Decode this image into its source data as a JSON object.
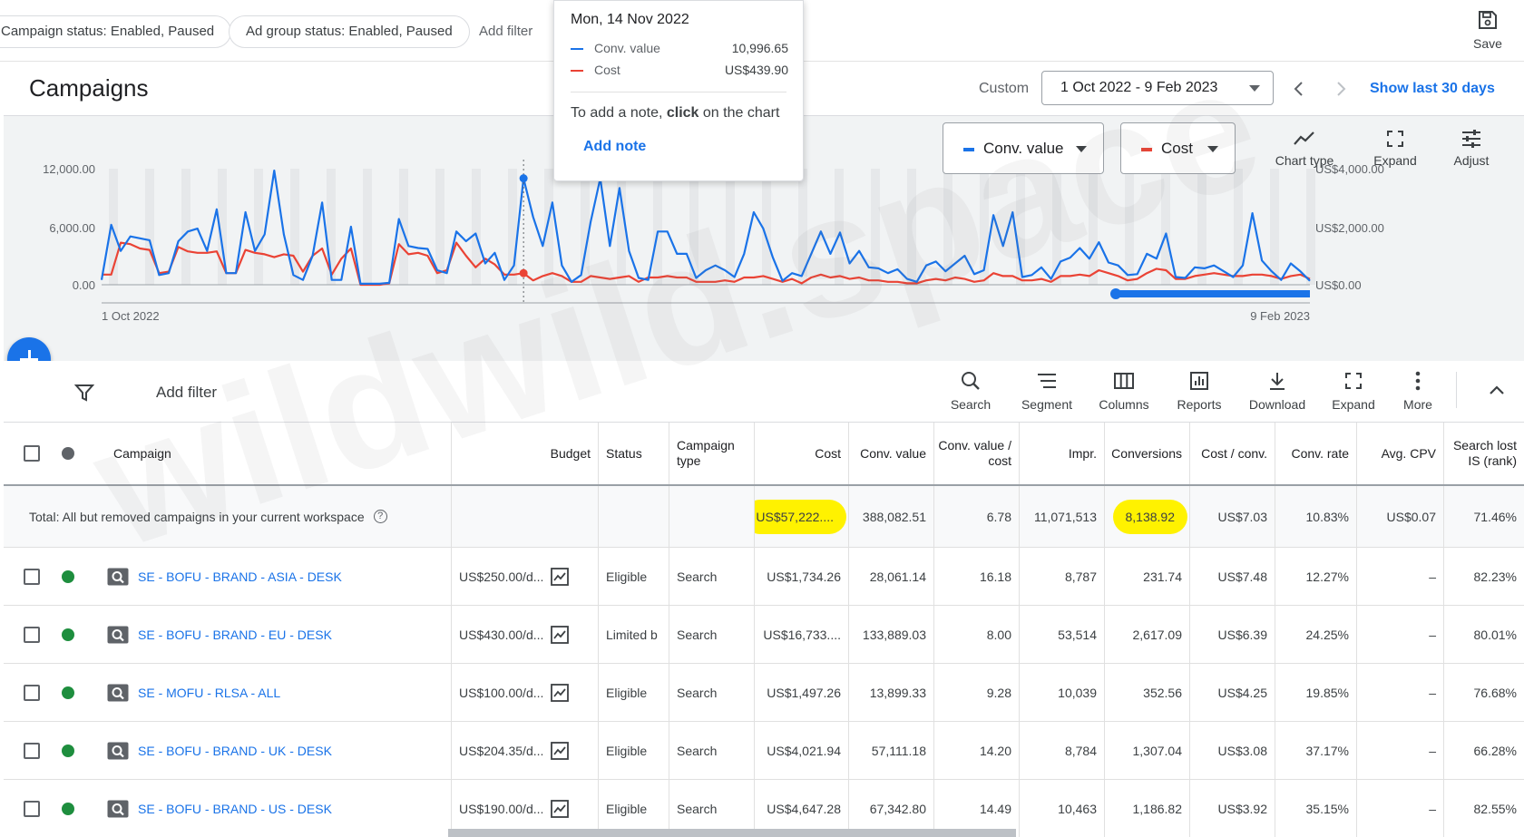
{
  "filter_bar": {
    "chips": [
      "Campaign status: Enabled, Paused",
      "Ad group status: Enabled, Paused"
    ],
    "add_filter": "Add filter",
    "save_label": "Save"
  },
  "header": {
    "title": "Campaigns",
    "custom_label": "Custom",
    "date_range": "1 Oct 2022 - 9 Feb 2023",
    "show_last": "Show last 30 days"
  },
  "tooltip": {
    "date": "Mon, 14 Nov 2022",
    "rows": [
      {
        "label": "Conv. value",
        "value": "10,996.65",
        "color": "#1a73e8"
      },
      {
        "label": "Cost",
        "value": "US$439.90",
        "color": "#ea4335"
      }
    ],
    "note_prefix": "To add a note, ",
    "note_bold": "click",
    "note_suffix": " on the chart",
    "add_note": "Add note"
  },
  "chart_controls": {
    "metric1": "Conv. value",
    "metric2": "Cost",
    "tools": [
      "Chart type",
      "Expand",
      "Adjust"
    ]
  },
  "chart_data": {
    "type": "line",
    "x_start": "1 Oct 2022",
    "x_end": "9 Feb 2023",
    "y_left_ticks": [
      "12,000.00",
      "6,000.00",
      "0.00"
    ],
    "y_right_ticks": [
      "US$4,000.00",
      "US$2,000.00",
      "US$0.00"
    ],
    "series": [
      {
        "name": "Conv. value",
        "color": "#1a73e8",
        "axis": "left",
        "values": [
          500,
          6200,
          3500,
          5000,
          4800,
          4600,
          1000,
          1200,
          4500,
          5500,
          5800,
          3500,
          7800,
          1200,
          1200,
          7500,
          3500,
          5200,
          11800,
          5200,
          1000,
          500,
          3000,
          8500,
          500,
          500,
          6000,
          100,
          100,
          100,
          200,
          6800,
          4000,
          3800,
          3700,
          1500,
          1200,
          5500,
          4500,
          5300,
          2200,
          3300,
          500,
          2000,
          11000,
          7000,
          4000,
          8500,
          2000,
          300,
          1000,
          6500,
          11000,
          4000,
          10000,
          3500,
          700,
          500,
          5500,
          5500,
          3200,
          3200,
          700,
          1500,
          2000,
          1500,
          800,
          3200,
          7500,
          5800,
          2800,
          400,
          1200,
          900,
          3200,
          5500,
          3200,
          5400,
          2200,
          3500,
          1800,
          1700,
          1200,
          1600,
          600,
          300,
          2000,
          2400,
          1400,
          2200,
          3000,
          1100,
          1500,
          7200,
          4000,
          7500,
          800,
          1000,
          1800,
          600,
          2400,
          2800,
          3800,
          2700,
          4400,
          2300,
          2000,
          1000,
          1100,
          3200,
          2700,
          5300,
          800,
          700,
          1800,
          1700,
          2000,
          1400,
          800,
          2000,
          7400,
          2500,
          1400,
          500,
          2200,
          1400,
          400
        ]
      },
      {
        "name": "Cost",
        "color": "#ea4335",
        "axis": "right",
        "values": [
          350,
          350,
          1450,
          1400,
          1250,
          1200,
          400,
          450,
          1300,
          1150,
          1100,
          1100,
          1150,
          400,
          400,
          1200,
          1100,
          1050,
          950,
          1050,
          1000,
          450,
          1000,
          1250,
          350,
          900,
          1250,
          0,
          0,
          0,
          50,
          1400,
          1050,
          1100,
          1000,
          400,
          500,
          1450,
          1000,
          600,
          900,
          700,
          350,
          350,
          400,
          150,
          300,
          400,
          300,
          100,
          100,
          300,
          250,
          200,
          250,
          300,
          100,
          250,
          250,
          300,
          250,
          250,
          100,
          100,
          100,
          150,
          100,
          250,
          250,
          300,
          200,
          100,
          200,
          50,
          250,
          350,
          250,
          300,
          200,
          250,
          150,
          150,
          100,
          100,
          50,
          50,
          150,
          200,
          150,
          250,
          200,
          100,
          150,
          400,
          300,
          300,
          150,
          150,
          200,
          100,
          300,
          300,
          350,
          300,
          500,
          400,
          300,
          150,
          200,
          400,
          550,
          500,
          200,
          200,
          300,
          350,
          400,
          350,
          300,
          300,
          350,
          350,
          300,
          200,
          300,
          350,
          200
        ]
      }
    ]
  },
  "table_toolbar": {
    "add_filter": "Add filter",
    "tools": [
      "Search",
      "Segment",
      "Columns",
      "Reports",
      "Download",
      "Expand",
      "More"
    ]
  },
  "table": {
    "headers": {
      "campaign": "Campaign",
      "budget": "Budget",
      "status": "Status",
      "type": "Campaign type",
      "cost": "Cost",
      "conv_value": "Conv. value",
      "conv_value_cost": "Conv. value / cost",
      "impr": "Impr.",
      "conversions": "Conversions",
      "cost_conv": "Cost / conv.",
      "conv_rate": "Conv. rate",
      "avg_cpv": "Avg. CPV",
      "search_lost": "Search lost IS (rank)"
    },
    "total": {
      "label": "Total: All but removed campaigns in your current workspace",
      "cost": "US$57,222....",
      "conv_value": "388,082.51",
      "conv_value_cost": "6.78",
      "impr": "11,071,513",
      "conversions": "8,138.92",
      "cost_conv": "US$7.03",
      "conv_rate": "10.83%",
      "avg_cpv": "US$0.07",
      "search_lost": "71.46%"
    },
    "rows": [
      {
        "name": "SE - BOFU - BRAND - ASIA - DESK",
        "budget": "US$250.00/d...",
        "status": "Eligible",
        "type": "Search",
        "cost": "US$1,734.26",
        "conv_value": "28,061.14",
        "conv_value_cost": "16.18",
        "impr": "8,787",
        "conversions": "231.74",
        "cost_conv": "US$7.48",
        "conv_rate": "12.27%",
        "avg_cpv": "–",
        "search_lost": "82.23%"
      },
      {
        "name": "SE - BOFU - BRAND - EU - DESK",
        "budget": "US$430.00/d...",
        "status": "Limited b",
        "type": "Search",
        "cost": "US$16,733....",
        "conv_value": "133,889.03",
        "conv_value_cost": "8.00",
        "impr": "53,514",
        "conversions": "2,617.09",
        "cost_conv": "US$6.39",
        "conv_rate": "24.25%",
        "avg_cpv": "–",
        "search_lost": "80.01%"
      },
      {
        "name": "SE - MOFU - RLSA - ALL",
        "budget": "US$100.00/d...",
        "status": "Eligible",
        "type": "Search",
        "cost": "US$1,497.26",
        "conv_value": "13,899.33",
        "conv_value_cost": "9.28",
        "impr": "10,039",
        "conversions": "352.56",
        "cost_conv": "US$4.25",
        "conv_rate": "19.85%",
        "avg_cpv": "–",
        "search_lost": "76.68%"
      },
      {
        "name": "SE - BOFU - BRAND - UK  - DESK",
        "budget": "US$204.35/d...",
        "status": "Eligible",
        "type": "Search",
        "cost": "US$4,021.94",
        "conv_value": "57,111.18",
        "conv_value_cost": "14.20",
        "impr": "8,784",
        "conversions": "1,307.04",
        "cost_conv": "US$3.08",
        "conv_rate": "37.17%",
        "avg_cpv": "–",
        "search_lost": "66.28%"
      },
      {
        "name": "SE - BOFU - BRAND - US - DESK",
        "budget": "US$190.00/d...",
        "status": "Eligible",
        "type": "Search",
        "cost": "US$4,647.28",
        "conv_value": "67,342.80",
        "conv_value_cost": "14.49",
        "impr": "10,463",
        "conversions": "1,186.82",
        "cost_conv": "US$3.92",
        "conv_rate": "35.15%",
        "avg_cpv": "–",
        "search_lost": "82.55%"
      }
    ]
  },
  "watermark": "wildwild.space"
}
